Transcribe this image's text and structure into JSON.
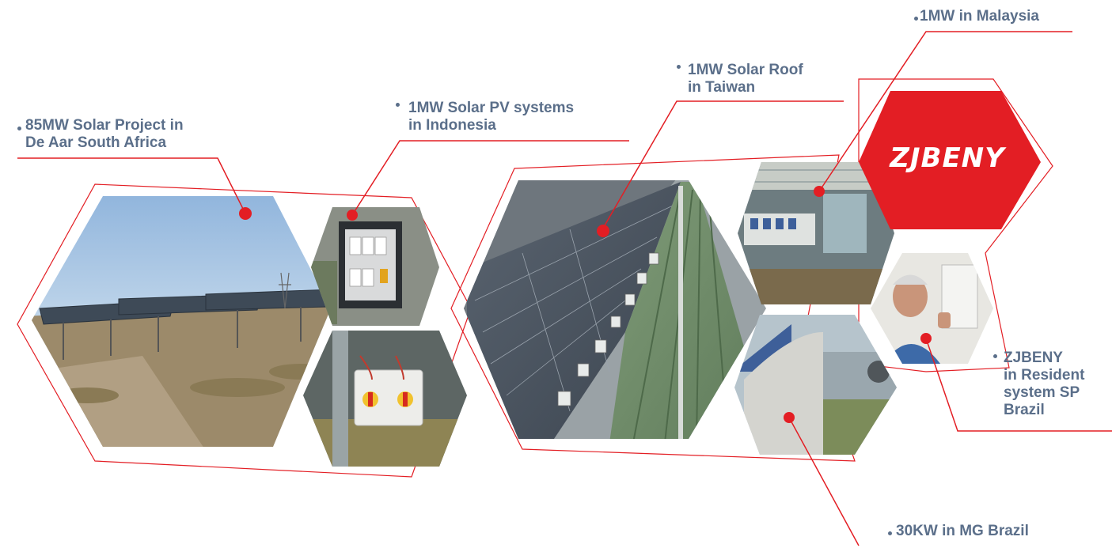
{
  "labels": {
    "south_africa": [
      "85MW Solar Project in",
      "De Aar South Africa"
    ],
    "indonesia": [
      "1MW Solar PV systems",
      "in Indonesia"
    ],
    "taiwan": [
      "1MW Solar Roof",
      "in Taiwan"
    ],
    "malaysia": [
      "1MW in Malaysia"
    ],
    "resident_brazil": [
      "ZJBENY",
      "in Resident",
      "system SP",
      "Brazil"
    ],
    "mg_brazil": [
      "30KW in MG Brazil"
    ]
  },
  "logo": {
    "text": "ZJBENY",
    "color": "#e31e24"
  },
  "colors": {
    "accent": "#e31e24",
    "text": "#5b6f8a"
  }
}
